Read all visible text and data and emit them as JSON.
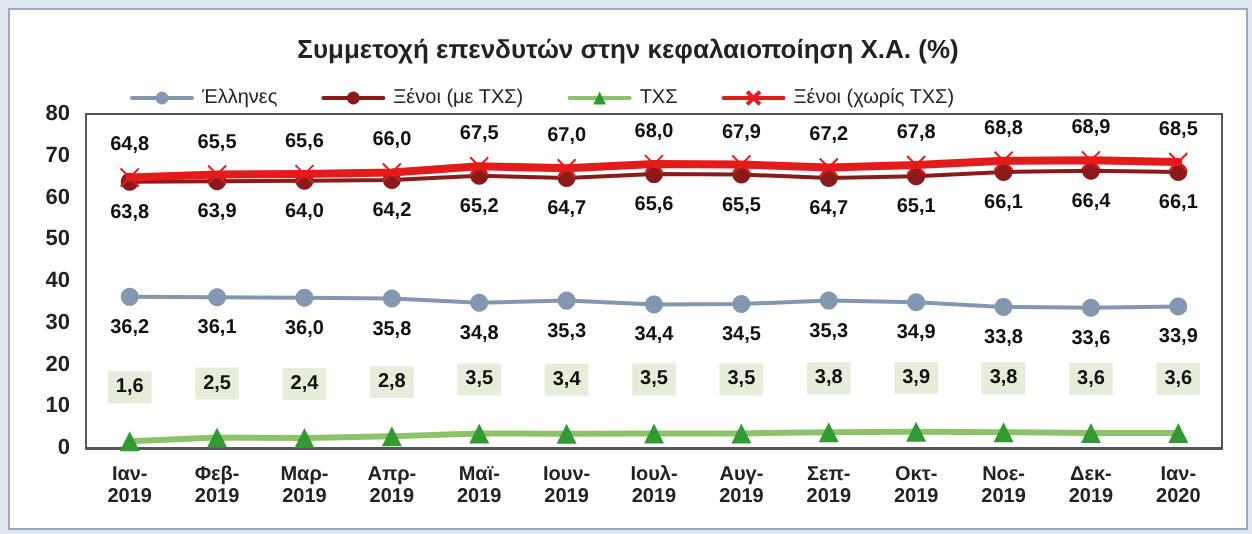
{
  "chart_data": {
    "type": "line",
    "title": "Συμμετοχή επενδυτών στην κεφαλαιοποίηση Χ.Α. (%)",
    "categories": [
      "Ιαν-2019",
      "Φεβ-2019",
      "Μαρ-2019",
      "Απρ-2019",
      "Μαϊ-2019",
      "Ιουν-2019",
      "Ιουλ-2019",
      "Αυγ-2019",
      "Σεπ-2019",
      "Οκτ-2019",
      "Νοε-2019",
      "Δεκ-2019",
      "Ιαν-2020"
    ],
    "series": [
      {
        "name": "Έλληνες",
        "color": "#8497b0",
        "marker": "circle",
        "values": [
          36.2,
          36.1,
          36.0,
          35.8,
          34.8,
          35.3,
          34.4,
          34.5,
          35.3,
          34.9,
          33.8,
          33.6,
          33.9
        ],
        "value_labels": [
          "36,2",
          "36,1",
          "36,0",
          "35,8",
          "34,8",
          "35,3",
          "34,4",
          "34,5",
          "35,3",
          "34,9",
          "33,8",
          "33,6",
          "33,9"
        ]
      },
      {
        "name": "Ξένοι (με ΤΧΣ)",
        "color": "#8b1a1a",
        "marker": "circle",
        "values": [
          63.8,
          63.9,
          64.0,
          64.2,
          65.2,
          64.7,
          65.6,
          65.5,
          64.7,
          65.1,
          66.1,
          66.4,
          66.1
        ],
        "value_labels": [
          "63,8",
          "63,9",
          "64,0",
          "64,2",
          "65,2",
          "64,7",
          "65,6",
          "65,5",
          "64,7",
          "65,1",
          "66,1",
          "66,4",
          "66,1"
        ]
      },
      {
        "name": "ΤΧΣ",
        "color": "#339933",
        "marker": "triangle",
        "values": [
          1.6,
          2.5,
          2.4,
          2.8,
          3.5,
          3.4,
          3.5,
          3.5,
          3.8,
          3.9,
          3.8,
          3.6,
          3.6
        ],
        "value_labels": [
          "1,6",
          "2,5",
          "2,4",
          "2,8",
          "3,5",
          "3,4",
          "3,5",
          "3,5",
          "3,8",
          "3,9",
          "3,8",
          "3,6",
          "3,6"
        ]
      },
      {
        "name": "Ξένοι (χωρίς ΤΧΣ)",
        "color": "#e31b1b",
        "marker": "cross",
        "values": [
          64.8,
          65.5,
          65.6,
          66.0,
          67.5,
          67.0,
          68.0,
          67.9,
          67.2,
          67.8,
          68.8,
          68.9,
          68.5
        ],
        "value_labels": [
          "64,8",
          "65,5",
          "65,6",
          "66,0",
          "67,5",
          "67,0",
          "68,0",
          "67,9",
          "67,2",
          "67,8",
          "68,8",
          "68,9",
          "68,5"
        ]
      }
    ],
    "ylim": [
      0,
      80
    ],
    "yticks": [
      0,
      10,
      20,
      30,
      40,
      50,
      60,
      70,
      80
    ],
    "grid": false,
    "legend": "top left"
  }
}
